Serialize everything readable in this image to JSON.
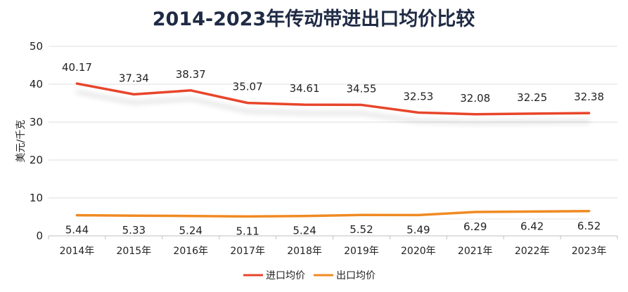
{
  "chart_data": {
    "type": "line",
    "title": "2014-2023年传动带进出口均价比较",
    "xlabel": "",
    "ylabel": "美元/千克",
    "categories": [
      "2014年",
      "2015年",
      "2016年",
      "2017年",
      "2018年",
      "2019年",
      "2020年",
      "2021年",
      "2022年",
      "2023年"
    ],
    "ylim": [
      0,
      50
    ],
    "yticks": [
      0,
      10,
      20,
      30,
      40,
      50
    ],
    "grid": true,
    "legend": "bottom-center",
    "series": [
      {
        "name": "进口均价",
        "color": "#e8452c",
        "values": [
          40.17,
          37.34,
          38.37,
          35.07,
          34.61,
          34.55,
          32.53,
          32.08,
          32.25,
          32.38
        ],
        "labels": [
          "40.17",
          "37.34",
          "38.37",
          "35.07",
          "34.61",
          "34.55",
          "32.53",
          "32.08",
          "32.25",
          "32.38"
        ]
      },
      {
        "name": "出口均价",
        "color": "#f08a24",
        "values": [
          5.44,
          5.33,
          5.24,
          5.11,
          5.24,
          5.52,
          5.49,
          6.29,
          6.42,
          6.52
        ],
        "labels": [
          "5.44",
          "5.33",
          "5.24",
          "5.11",
          "5.24",
          "5.52",
          "5.49",
          "6.29",
          "6.42",
          "6.52"
        ]
      }
    ]
  }
}
